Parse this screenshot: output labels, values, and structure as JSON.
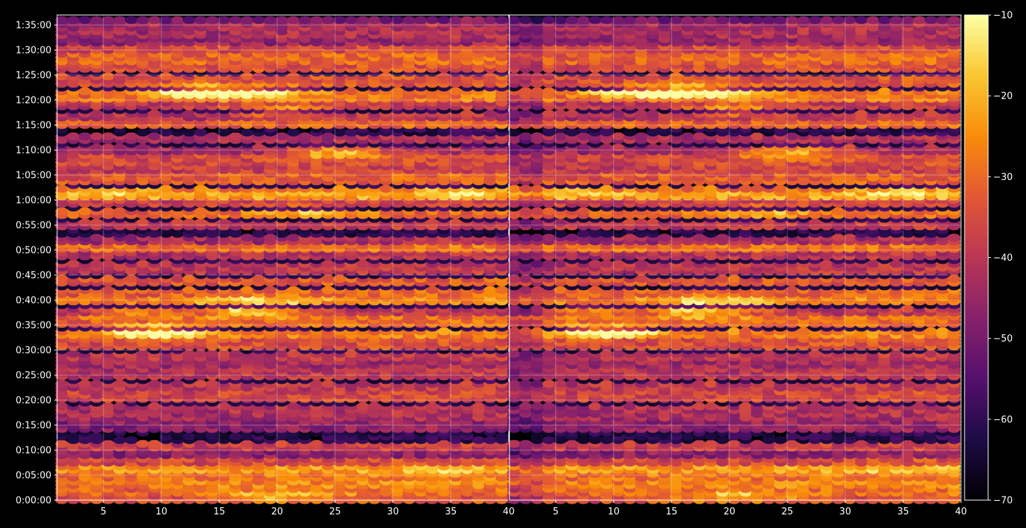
{
  "chart_data": {
    "type": "heatmap",
    "panels": [
      {
        "name": "",
        "x_ticks": [
          5,
          10,
          15,
          20,
          25,
          30,
          35,
          40
        ],
        "xlim": [
          1,
          40
        ]
      },
      {
        "name": "",
        "x_ticks": [
          5,
          10,
          15,
          20,
          25,
          30,
          35,
          40
        ],
        "xlim": [
          1,
          40
        ]
      }
    ],
    "y_ticks": [
      "0:00:00",
      "0:05:00",
      "0:10:00",
      "0:15:00",
      "0:20:00",
      "0:25:00",
      "0:30:00",
      "0:35:00",
      "0:40:00",
      "0:45:00",
      "0:50:00",
      "0:55:00",
      "1:00:00",
      "1:05:00",
      "1:10:00",
      "1:15:00",
      "1:20:00",
      "1:25:00",
      "1:30:00",
      "1:35:00"
    ],
    "ylim_seconds": [
      0,
      5820
    ],
    "row_spacing_seconds": 90,
    "colorbar": {
      "colormap": "inferno",
      "range": [
        -70,
        -10
      ],
      "ticks": [
        "−70",
        "−60",
        "−50",
        "−40",
        "−30",
        "−20",
        "−10"
      ]
    },
    "grid": true,
    "legend": "none",
    "colors": {
      "background": "#000000",
      "axis": "#ffffff",
      "grid": "#ffffff"
    },
    "row_levels": [
      [
        0,
        -36
      ],
      [
        90,
        -32
      ],
      [
        180,
        -28
      ],
      [
        270,
        -30
      ],
      [
        360,
        -25
      ],
      [
        450,
        -37
      ],
      [
        540,
        -48
      ],
      [
        630,
        -40
      ],
      [
        900,
        -48
      ],
      [
        990,
        -44
      ],
      [
        1080,
        -43
      ],
      [
        1260,
        -38
      ],
      [
        1350,
        -41
      ],
      [
        1530,
        -42
      ],
      [
        1620,
        -45
      ],
      [
        1710,
        -41
      ],
      [
        1890,
        -36
      ],
      [
        1980,
        -29
      ],
      [
        2160,
        -32
      ],
      [
        2250,
        -42
      ],
      [
        2400,
        -29
      ],
      [
        2500,
        -33
      ],
      [
        2640,
        -35
      ],
      [
        2790,
        -42
      ],
      [
        2940,
        -43
      ],
      [
        3030,
        -31
      ],
      [
        3120,
        -45
      ],
      [
        3300,
        -41
      ],
      [
        3450,
        -33
      ],
      [
        3570,
        -39
      ],
      [
        3660,
        -24
      ],
      [
        3720,
        -30
      ],
      [
        3870,
        -34
      ],
      [
        3960,
        -39
      ],
      [
        4100,
        -37
      ],
      [
        4200,
        -45
      ],
      [
        4350,
        -44
      ],
      [
        4520,
        -33
      ],
      [
        4620,
        -42
      ],
      [
        4740,
        -41
      ],
      [
        4860,
        -31
      ],
      [
        5040,
        -36
      ],
      [
        5200,
        -36
      ],
      [
        5310,
        -32
      ],
      [
        5420,
        -37
      ],
      [
        5510,
        -47
      ],
      [
        5600,
        -44
      ],
      [
        5700,
        -44
      ],
      [
        5800,
        -52
      ]
    ],
    "hotspots": [
      [
        4920,
        15,
        6,
        -18
      ],
      [
        2400,
        18,
        5,
        -16
      ],
      [
        2280,
        17,
        5,
        -16
      ],
      [
        4700,
        20,
        4,
        -19
      ],
      [
        3480,
        22,
        5,
        -20
      ],
      [
        60,
        20,
        6,
        -18
      ],
      [
        3720,
        5,
        5,
        -22
      ],
      [
        2280,
        8,
        4,
        -24
      ],
      [
        4190,
        25,
        4,
        -21
      ],
      [
        3720,
        35,
        4,
        -21
      ],
      [
        360,
        35,
        5,
        -20
      ],
      [
        2040,
        9,
        4,
        -24
      ]
    ]
  }
}
